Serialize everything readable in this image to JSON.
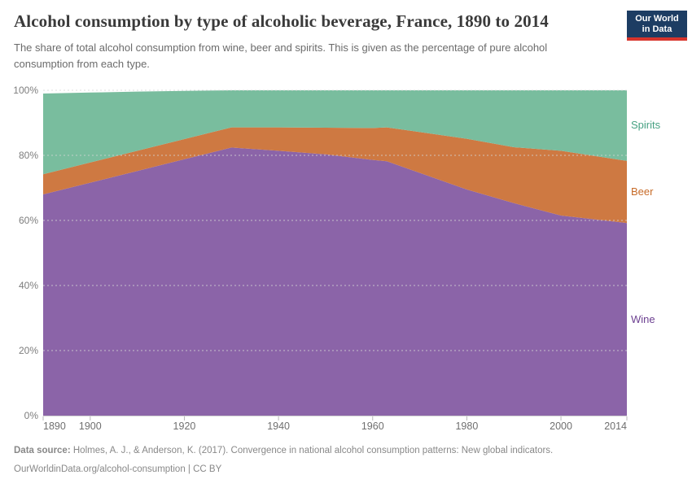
{
  "header": {
    "title": "Alcohol consumption by type of alcoholic beverage, France, 1890 to 2014",
    "subtitle": "The share of total alcohol consumption from wine, beer and spirits. This is given as the percentage of pure alcohol consumption from each type.",
    "logo": {
      "line1": "Our World",
      "line2": "in Data",
      "bg_color": "#1d3d63",
      "stripe_color": "#d7342c"
    }
  },
  "chart_data": {
    "type": "area",
    "stacked": true,
    "relative": true,
    "title": "Alcohol consumption by type of alcoholic beverage, France, 1890 to 2014",
    "xlabel": "",
    "ylabel": "",
    "xlim": [
      1890,
      2014
    ],
    "ylim": [
      0,
      100
    ],
    "grid": true,
    "gridline_color": "#d6d6d6",
    "legend_position": "right",
    "x": [
      1890,
      1900,
      1910,
      1920,
      1930,
      1940,
      1950,
      1960,
      1963,
      1980,
      1990,
      2000,
      2014
    ],
    "series": [
      {
        "name": "Wine",
        "color": "#8b64a8",
        "label_color": "#6d4191",
        "values": [
          68.0,
          71.6,
          75.2,
          78.8,
          82.4,
          81.4,
          80.3,
          78.6,
          78.2,
          69.5,
          65.3,
          61.5,
          59.2
        ]
      },
      {
        "name": "Beer",
        "color": "#ce7942",
        "label_color": "#c76b28",
        "values": [
          6.2,
          6.2,
          6.2,
          6.2,
          6.2,
          7.2,
          8.2,
          9.8,
          10.4,
          15.6,
          17.2,
          19.9,
          19.1
        ]
      },
      {
        "name": "Spirits",
        "color": "#79bd9e",
        "label_color": "#46a182",
        "values": [
          24.8,
          21.5,
          18.2,
          14.8,
          11.4,
          11.4,
          11.5,
          11.6,
          11.4,
          14.9,
          17.5,
          18.6,
          21.7
        ]
      }
    ],
    "y_ticks": [
      0,
      20,
      40,
      60,
      80,
      100
    ],
    "y_tick_labels": [
      "0%",
      "20%",
      "40%",
      "60%",
      "80%",
      "100%"
    ],
    "x_ticks": [
      1890,
      1900,
      1920,
      1940,
      1960,
      1980,
      2000,
      2014
    ],
    "x_tick_labels": [
      "1890",
      "1900",
      "1920",
      "1940",
      "1960",
      "1980",
      "2000",
      "2014"
    ]
  },
  "footer": {
    "source_label": "Data source:",
    "source_text": "Holmes, A. J., & Anderson, K. (2017). Convergence in national alcohol consumption patterns: New global indicators.",
    "credit": "OurWorldinData.org/alcohol-consumption | CC BY"
  }
}
